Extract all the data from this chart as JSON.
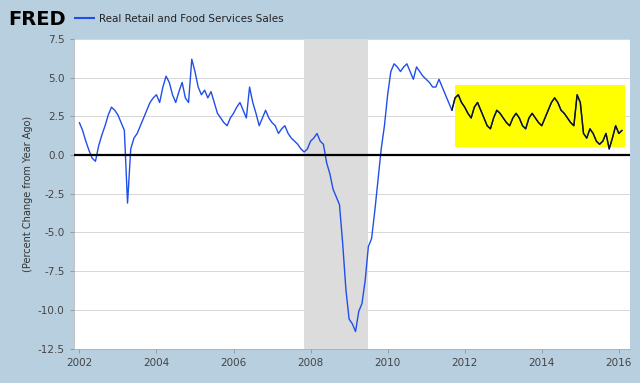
{
  "title": "Real Retail and Food Services Sales",
  "ylabel": "(Percent Change from Year Ago)",
  "line_color_main": "#1f4fe8",
  "line_color_highlight": "#111111",
  "background_color": "#b8cfe0",
  "plot_bg_color": "#ffffff",
  "recession_color": "#dcdcdc",
  "recession_alpha": 1.0,
  "highlight_color": "#ffff00",
  "highlight_alpha": 1.0,
  "recession_start": 2007.83,
  "recession_end": 2009.5,
  "highlight_start": 2011.75,
  "highlight_end": 2016.17,
  "highlight_ymin": 0.55,
  "highlight_ymax": 4.55,
  "ylim": [
    -12.5,
    7.5
  ],
  "xlim_start": 2001.85,
  "xlim_end": 2016.3,
  "yticks": [
    -12.5,
    -10.0,
    -7.5,
    -5.0,
    -2.5,
    0.0,
    2.5,
    5.0,
    7.5
  ],
  "xticks": [
    2002,
    2004,
    2006,
    2008,
    2010,
    2012,
    2014,
    2016
  ],
  "data": {
    "dates": [
      2002.0,
      2002.083,
      2002.167,
      2002.25,
      2002.333,
      2002.417,
      2002.5,
      2002.583,
      2002.667,
      2002.75,
      2002.833,
      2002.917,
      2003.0,
      2003.083,
      2003.167,
      2003.25,
      2003.333,
      2003.417,
      2003.5,
      2003.583,
      2003.667,
      2003.75,
      2003.833,
      2003.917,
      2004.0,
      2004.083,
      2004.167,
      2004.25,
      2004.333,
      2004.417,
      2004.5,
      2004.583,
      2004.667,
      2004.75,
      2004.833,
      2004.917,
      2005.0,
      2005.083,
      2005.167,
      2005.25,
      2005.333,
      2005.417,
      2005.5,
      2005.583,
      2005.667,
      2005.75,
      2005.833,
      2005.917,
      2006.0,
      2006.083,
      2006.167,
      2006.25,
      2006.333,
      2006.417,
      2006.5,
      2006.583,
      2006.667,
      2006.75,
      2006.833,
      2006.917,
      2007.0,
      2007.083,
      2007.167,
      2007.25,
      2007.333,
      2007.417,
      2007.5,
      2007.583,
      2007.667,
      2007.75,
      2007.833,
      2007.917,
      2008.0,
      2008.083,
      2008.167,
      2008.25,
      2008.333,
      2008.417,
      2008.5,
      2008.583,
      2008.667,
      2008.75,
      2008.833,
      2008.917,
      2009.0,
      2009.083,
      2009.167,
      2009.25,
      2009.333,
      2009.417,
      2009.5,
      2009.583,
      2009.667,
      2009.75,
      2009.833,
      2009.917,
      2010.0,
      2010.083,
      2010.167,
      2010.25,
      2010.333,
      2010.417,
      2010.5,
      2010.583,
      2010.667,
      2010.75,
      2010.833,
      2010.917,
      2011.0,
      2011.083,
      2011.167,
      2011.25,
      2011.333,
      2011.417,
      2011.5,
      2011.583,
      2011.667,
      2011.75,
      2011.833,
      2011.917,
      2012.0,
      2012.083,
      2012.167,
      2012.25,
      2012.333,
      2012.417,
      2012.5,
      2012.583,
      2012.667,
      2012.75,
      2012.833,
      2012.917,
      2013.0,
      2013.083,
      2013.167,
      2013.25,
      2013.333,
      2013.417,
      2013.5,
      2013.583,
      2013.667,
      2013.75,
      2013.833,
      2013.917,
      2014.0,
      2014.083,
      2014.167,
      2014.25,
      2014.333,
      2014.417,
      2014.5,
      2014.583,
      2014.667,
      2014.75,
      2014.833,
      2014.917,
      2015.0,
      2015.083,
      2015.167,
      2015.25,
      2015.333,
      2015.417,
      2015.5,
      2015.583,
      2015.667,
      2015.75,
      2015.833,
      2015.917,
      2016.0,
      2016.083
    ],
    "values": [
      2.1,
      1.6,
      0.9,
      0.3,
      -0.2,
      -0.4,
      0.6,
      1.3,
      1.9,
      2.6,
      3.1,
      2.9,
      2.6,
      2.1,
      1.6,
      -3.1,
      0.4,
      1.1,
      1.4,
      1.9,
      2.4,
      2.9,
      3.4,
      3.7,
      3.9,
      3.4,
      4.4,
      5.1,
      4.7,
      3.9,
      3.4,
      4.1,
      4.7,
      3.7,
      3.4,
      6.2,
      5.4,
      4.4,
      3.9,
      4.2,
      3.7,
      4.1,
      3.4,
      2.7,
      2.4,
      2.1,
      1.9,
      2.4,
      2.7,
      3.1,
      3.4,
      2.9,
      2.4,
      4.4,
      3.4,
      2.7,
      1.9,
      2.4,
      2.9,
      2.4,
      2.1,
      1.9,
      1.4,
      1.7,
      1.9,
      1.4,
      1.1,
      0.9,
      0.7,
      0.4,
      0.2,
      0.4,
      0.9,
      1.1,
      1.4,
      0.9,
      0.7,
      -0.5,
      -1.2,
      -2.2,
      -2.7,
      -3.2,
      -5.7,
      -8.7,
      -10.6,
      -10.9,
      -11.4,
      -10.1,
      -9.6,
      -8.1,
      -5.9,
      -5.4,
      -3.6,
      -1.6,
      0.4,
      1.9,
      3.9,
      5.4,
      5.9,
      5.7,
      5.4,
      5.7,
      5.9,
      5.4,
      4.9,
      5.7,
      5.4,
      5.1,
      4.9,
      4.7,
      4.4,
      4.4,
      4.9,
      4.4,
      3.9,
      3.4,
      2.9,
      3.7,
      3.9,
      3.4,
      3.1,
      2.7,
      2.4,
      3.1,
      3.4,
      2.9,
      2.4,
      1.9,
      1.7,
      2.4,
      2.9,
      2.7,
      2.4,
      2.1,
      1.9,
      2.4,
      2.7,
      2.4,
      1.9,
      1.7,
      2.4,
      2.7,
      2.4,
      2.1,
      1.9,
      2.4,
      2.9,
      3.4,
      3.7,
      3.4,
      2.9,
      2.7,
      2.4,
      2.1,
      1.9,
      3.9,
      3.4,
      1.4,
      1.1,
      1.7,
      1.4,
      0.9,
      0.7,
      0.9,
      1.4,
      0.4,
      1.1,
      1.9,
      1.4,
      1.6
    ]
  }
}
